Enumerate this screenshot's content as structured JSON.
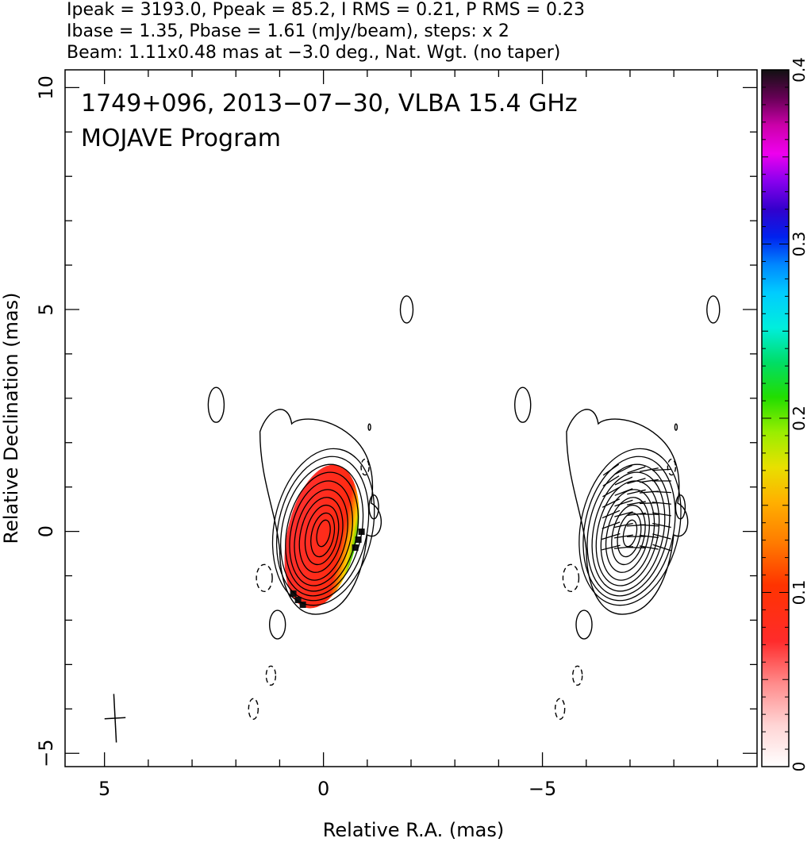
{
  "header": {
    "line1": "Ipeak = 3193.0, Ppeak = 85.2, I RMS = 0.21, P RMS = 0.23",
    "line2": "Ibase = 1.35, Pbase = 1.61 (mJy/beam), steps: x 2",
    "line3": "Beam: 1.11x0.48 mas at −3.0 deg., Nat. Wgt. (no taper)"
  },
  "annotation": {
    "line1": "1749+096, 2013−07−30, VLBA 15.4 GHz",
    "line2": "MOJAVE Program"
  },
  "chart_data": {
    "type": "contour",
    "xlabel": "Relative R.A. (mas)",
    "ylabel": "Relative Declination (mas)",
    "xlim": [
      5.9,
      -9.9
    ],
    "ylim": [
      -5.3,
      10.4
    ],
    "x_ticks": [
      {
        "value": 5,
        "label": "5"
      },
      {
        "value": 0,
        "label": "0"
      },
      {
        "value": -5,
        "label": "−5"
      }
    ],
    "y_ticks": [
      {
        "value": 10,
        "label": "10"
      },
      {
        "value": 5,
        "label": "5"
      },
      {
        "value": 0,
        "label": "0"
      },
      {
        "value": -5,
        "label": "−5"
      }
    ],
    "colorbar": {
      "range": [
        0,
        0.4
      ],
      "ticks": [
        {
          "value": 0,
          "label": "0"
        },
        {
          "value": 0.1,
          "label": "0.1"
        },
        {
          "value": 0.2,
          "label": "0.2"
        },
        {
          "value": 0.3,
          "label": "0.3"
        },
        {
          "value": 0.4,
          "label": "0.4"
        }
      ]
    },
    "ipeak_mJy_per_beam": 3193.0,
    "ppeak_mJy_per_beam": 85.2,
    "i_rms": 0.21,
    "p_rms": 0.23,
    "ibase": 1.35,
    "pbase": 1.61,
    "contour_step_factor": 2,
    "beam": {
      "major_mas": 1.11,
      "minor_mas": 0.48,
      "pa_deg": -3.0
    },
    "panels": [
      {
        "name": "left",
        "core_ra": 0.0,
        "core_dec": 0.1
      },
      {
        "name": "right",
        "core_ra": -7.0,
        "core_dec": 0.5
      }
    ]
  }
}
